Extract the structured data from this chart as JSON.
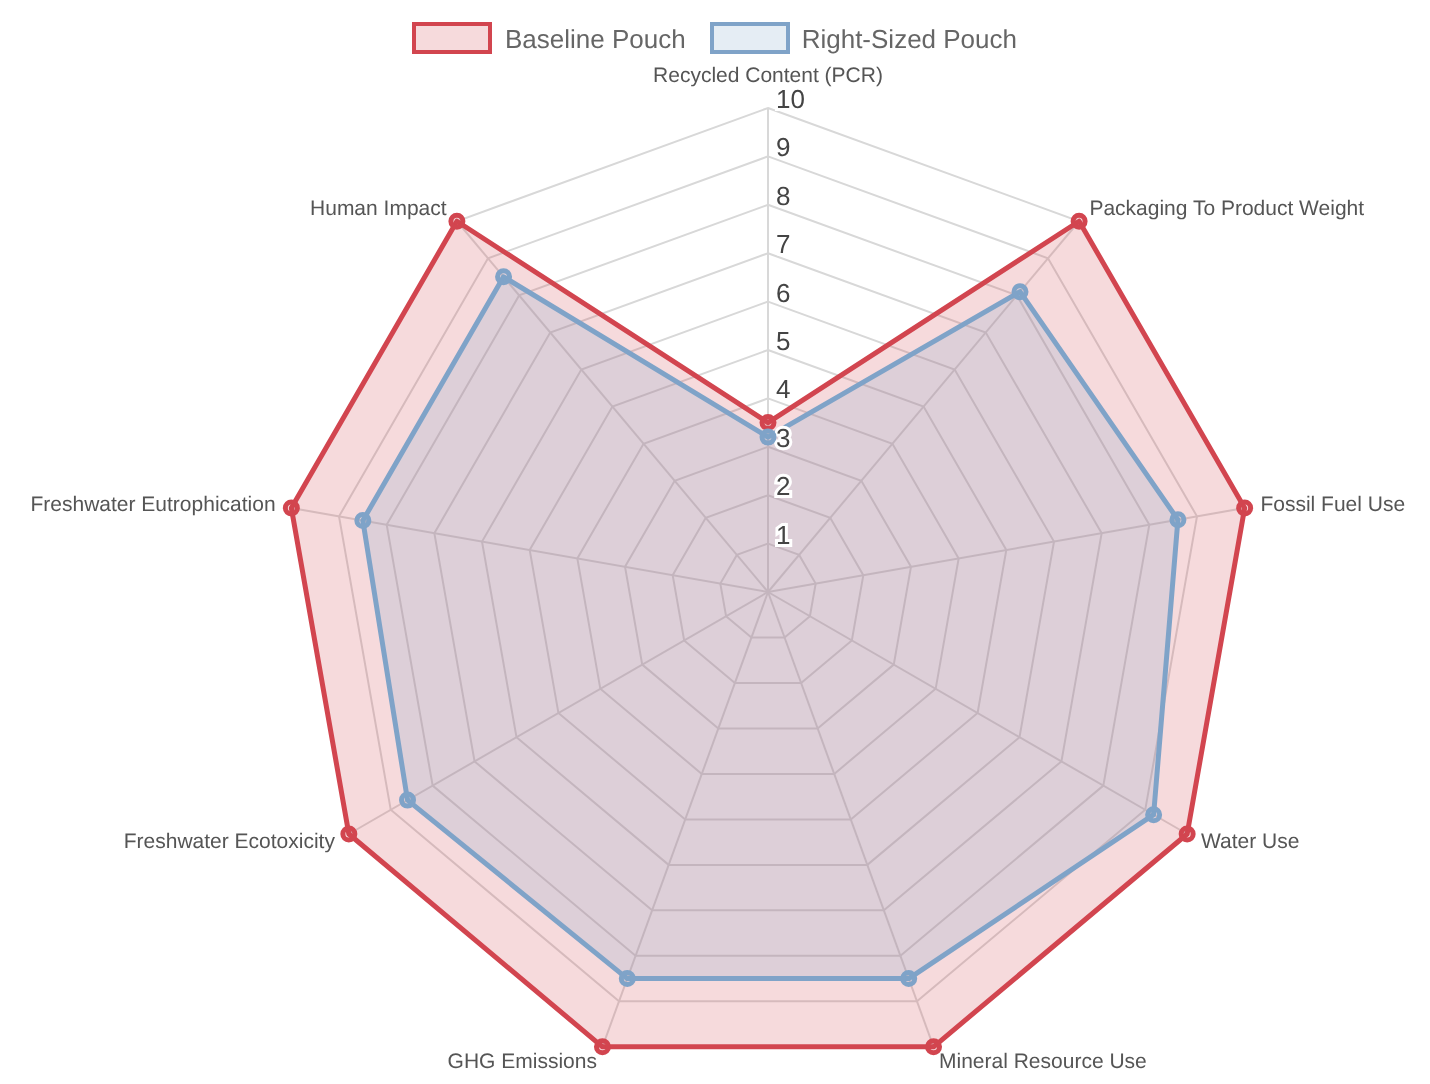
{
  "chart_data": {
    "type": "radar",
    "categories": [
      "Recycled Content (PCR)",
      "Packaging To Product Weight",
      "Fossil Fuel Use",
      "Water Use",
      "Mineral Resource Use",
      "GHG Emissions",
      "Freshwater Ecotoxicity",
      "Freshwater Eutrophication",
      "Human Impact"
    ],
    "series": [
      {
        "name": "Baseline Pouch",
        "color": "#d2454f",
        "values": [
          3.5,
          10,
          10,
          10,
          10,
          10,
          10,
          10,
          10
        ]
      },
      {
        "name": "Right-Sized Pouch",
        "color": "#7fa3c8",
        "values": [
          3.2,
          8.1,
          8.6,
          9.2,
          8.5,
          8.5,
          8.6,
          8.5,
          8.5
        ]
      }
    ],
    "ylim": [
      0,
      10
    ],
    "yticks": [
      1,
      2,
      3,
      4,
      5,
      6,
      7,
      8,
      9,
      10
    ],
    "legend": "top",
    "marker": "circle",
    "grid": true
  }
}
